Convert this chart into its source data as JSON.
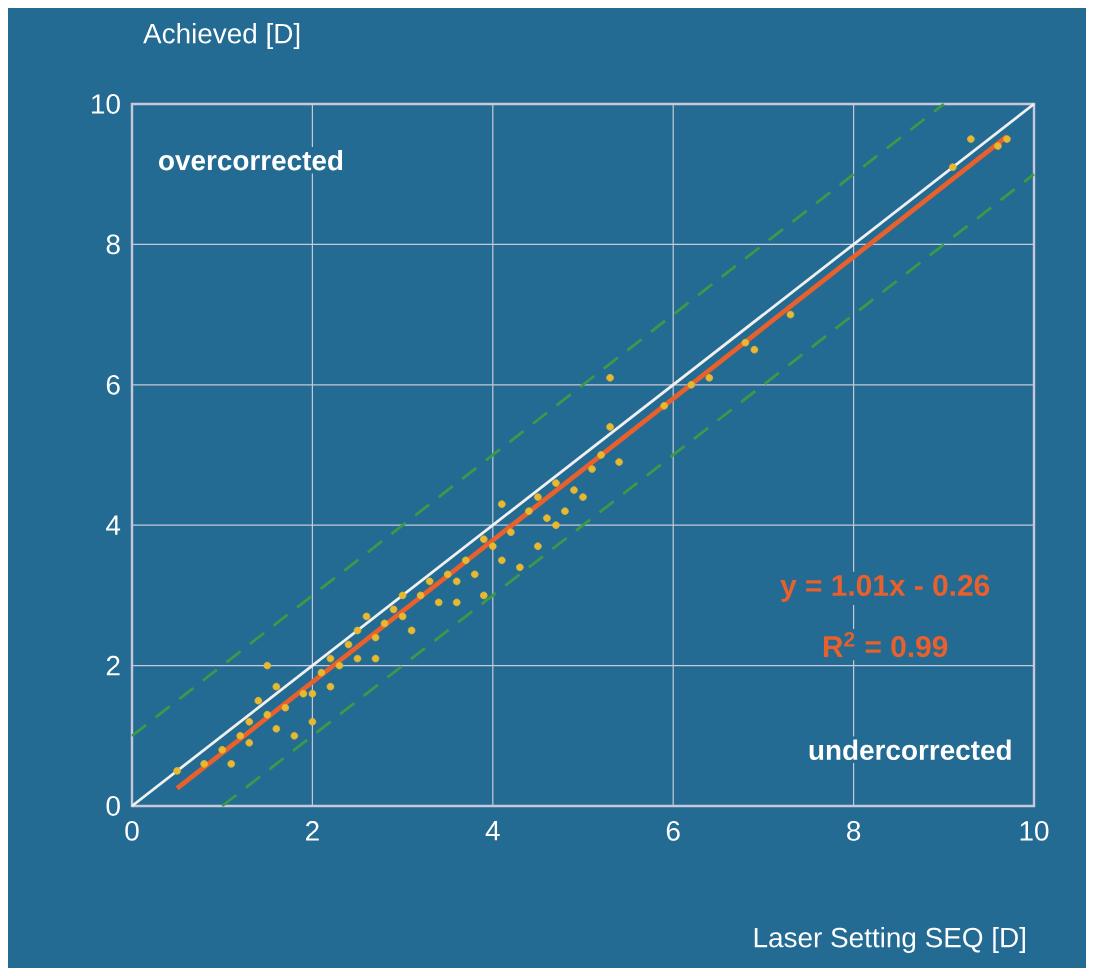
{
  "chart_data": {
    "type": "scatter",
    "xlabel": "Laser Setting SEQ [D]",
    "ylabel": "Achieved [D]",
    "xlim": [
      0,
      10
    ],
    "ylim": [
      0,
      10
    ],
    "xticks": [
      0,
      2,
      4,
      6,
      8,
      10
    ],
    "yticks": [
      0,
      2,
      4,
      6,
      8,
      10
    ],
    "grid": true,
    "marker": "circle",
    "annotations": [
      "overcorrected",
      "undercorrected",
      "y = 1.01x - 0.26",
      "R$^{2}$ = 0.99"
    ],
    "series": [
      {
        "type": "line",
        "color": "#3a9a4a",
        "line_style": "dashed",
        "marker": "none",
        "x": [
          0,
          9
        ],
        "values": [
          1,
          10
        ]
      },
      {
        "type": "line",
        "color": "#3a9a4a",
        "line_style": "dashed",
        "marker": "none",
        "x": [
          1,
          10
        ],
        "values": [
          0,
          9
        ]
      },
      {
        "color": "#e8b830",
        "x": [
          0.5,
          0.8,
          1.0,
          1.1,
          1.2,
          1.3,
          1.3,
          1.4,
          1.5,
          1.5,
          1.6,
          1.6,
          1.7,
          1.8,
          1.9,
          2.0,
          2.0,
          2.1,
          2.2,
          2.2,
          2.3,
          2.4,
          2.5,
          2.5,
          2.6,
          2.7,
          2.7,
          2.8,
          2.9,
          3.0,
          3.0,
          3.1,
          3.2,
          3.3,
          3.4,
          3.5,
          3.6,
          3.6,
          3.7,
          3.8,
          3.9,
          3.9,
          4.0,
          4.1,
          4.1,
          4.2,
          4.3,
          4.4,
          4.5,
          4.5,
          4.6,
          4.7,
          4.7,
          4.8,
          4.9,
          5.0,
          5.1,
          5.2,
          5.3,
          5.3,
          5.4,
          5.9,
          6.2,
          6.4,
          6.8,
          6.9,
          7.3,
          9.1,
          9.3,
          9.6,
          9.7
        ],
        "values": [
          0.5,
          0.6,
          0.8,
          0.6,
          1.0,
          1.2,
          0.9,
          1.5,
          2.0,
          1.3,
          1.7,
          1.1,
          1.4,
          1.0,
          1.6,
          1.6,
          1.2,
          1.9,
          2.1,
          1.7,
          2.0,
          2.3,
          2.5,
          2.1,
          2.7,
          2.4,
          2.1,
          2.6,
          2.8,
          3.0,
          2.7,
          2.5,
          3.0,
          3.2,
          2.9,
          3.3,
          3.2,
          2.9,
          3.5,
          3.3,
          3.8,
          3.0,
          3.7,
          4.3,
          3.5,
          3.9,
          3.4,
          4.2,
          4.4,
          3.7,
          4.1,
          4.6,
          4.0,
          4.2,
          4.5,
          4.4,
          4.8,
          5.0,
          5.4,
          6.1,
          4.9,
          5.7,
          6.0,
          6.1,
          6.6,
          6.5,
          7.0,
          9.1,
          9.5,
          9.4,
          9.5
        ]
      },
      {
        "type": "line",
        "color": "#f0f0f0",
        "line_style": "solid",
        "marker": "none",
        "x": [
          0,
          10
        ],
        "values": [
          0,
          10
        ]
      },
      {
        "type": "line",
        "color": "#e8602c",
        "line_style": "solid",
        "marker": "none",
        "x": [
          0.5,
          9.7
        ],
        "values": [
          0.25,
          9.54
        ]
      }
    ]
  }
}
